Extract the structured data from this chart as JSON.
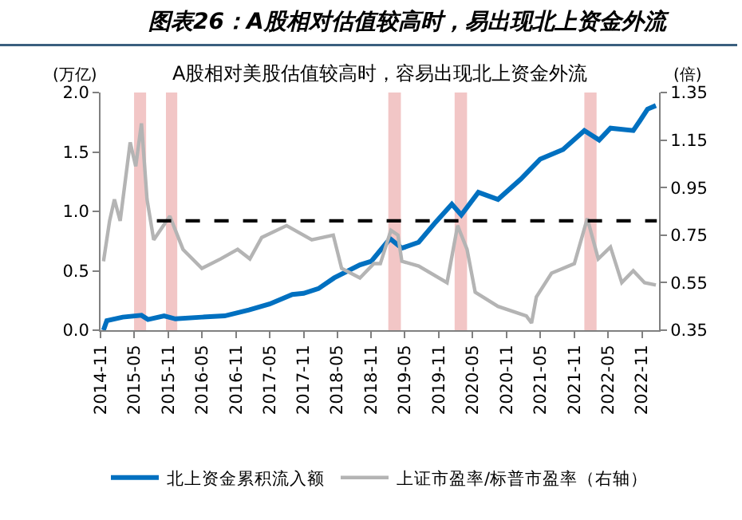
{
  "chart_data": {
    "type": "line",
    "title": "图表26：A股相对估值较高时，易出现北上资金外流",
    "subtitle": "A股相对美股估值较高时，容易出现北上资金外流",
    "ylabel": "(万亿)",
    "y2label": "(倍)",
    "xlim": [
      "2014-11",
      "2023-02"
    ],
    "xticks": [
      "2014-11",
      "2015-05",
      "2015-11",
      "2016-05",
      "2016-11",
      "2017-05",
      "2017-11",
      "2018-05",
      "2018-11",
      "2019-05",
      "2019-11",
      "2020-05",
      "2020-11",
      "2021-05",
      "2021-11",
      "2022-05",
      "2022-11"
    ],
    "ylim": [
      0,
      2.0
    ],
    "yticks": [
      {
        "value": 0,
        "label": "0.0"
      },
      0.5,
      {
        "value": 1,
        "label": "1.0"
      },
      1.5,
      {
        "value": 2,
        "label": "2.0"
      }
    ],
    "y2lim": [
      0.35,
      1.35
    ],
    "y2ticks": [
      0.35,
      0.55,
      0.75,
      0.95,
      1.15,
      1.35
    ],
    "grid": false,
    "legend": "bottom",
    "marker": "none",
    "series": [
      {
        "name": "北上资金累积流入额",
        "color": "#0070c0",
        "axis": "y",
        "x": [
          "2014-11-17",
          "2014-12-05",
          "2015-03-01",
          "2015-06-10",
          "2015-07-15",
          "2015-10-10",
          "2015-12-10",
          "2016-05-01",
          "2016-09-01",
          "2017-01-10",
          "2017-05-01",
          "2017-09-01",
          "2017-11-01",
          "2018-01-20",
          "2018-04-15",
          "2018-09-01",
          "2018-11-01",
          "2019-02-10",
          "2019-04-15",
          "2019-07-15",
          "2019-10-15",
          "2020-01-10",
          "2020-03-01",
          "2020-06-01",
          "2020-09-15",
          "2021-01-15",
          "2021-05-01",
          "2021-09-01",
          "2021-12-25",
          "2022-03-15",
          "2022-05-15",
          "2022-09-15",
          "2022-10-20",
          "2022-12-01",
          "2023-01-15"
        ],
        "values": [
          0.0,
          0.08,
          0.11,
          0.125,
          0.09,
          0.12,
          0.095,
          0.11,
          0.12,
          0.17,
          0.22,
          0.3,
          0.31,
          0.35,
          0.44,
          0.55,
          0.58,
          0.77,
          0.69,
          0.74,
          0.91,
          1.06,
          0.97,
          1.16,
          1.1,
          1.27,
          1.44,
          1.52,
          1.68,
          1.6,
          1.7,
          1.68,
          1.76,
          1.86,
          1.89
        ]
      },
      {
        "name": "上证市盈率/标普市盈率（右轴）",
        "color": "#b4b4b4",
        "axis": "y2",
        "x": [
          "2014-11-17",
          "2014-12-20",
          "2015-01-15",
          "2015-02-15",
          "2015-04-10",
          "2015-05-10",
          "2015-06-10",
          "2015-07-10",
          "2015-08-15",
          "2015-11-10",
          "2016-01-20",
          "2016-05-01",
          "2016-08-10",
          "2016-11-10",
          "2017-01-15",
          "2017-03-20",
          "2017-08-01",
          "2017-12-15",
          "2018-04-10",
          "2018-05-25",
          "2018-09-01",
          "2018-11-15",
          "2018-12-20",
          "2019-02-15",
          "2019-03-25",
          "2019-04-15",
          "2019-07-15",
          "2019-12-15",
          "2020-02-10",
          "2020-04-01",
          "2020-05-15",
          "2020-09-15",
          "2021-02-15",
          "2021-03-15",
          "2021-04-10",
          "2021-07-01",
          "2021-11-01",
          "2022-01-10",
          "2022-03-10",
          "2022-05-15",
          "2022-07-15",
          "2022-09-15",
          "2022-11-15",
          "2023-01-15"
        ],
        "values": [
          0.64,
          0.81,
          0.9,
          0.81,
          1.14,
          1.04,
          1.22,
          0.9,
          0.73,
          0.83,
          0.69,
          0.61,
          0.65,
          0.69,
          0.65,
          0.74,
          0.79,
          0.73,
          0.75,
          0.61,
          0.57,
          0.63,
          0.63,
          0.77,
          0.75,
          0.64,
          0.62,
          0.55,
          0.79,
          0.69,
          0.51,
          0.45,
          0.41,
          0.38,
          0.49,
          0.59,
          0.63,
          0.82,
          0.65,
          0.7,
          0.55,
          0.6,
          0.55,
          0.54
        ]
      },
      {
        "color": "#000000",
        "axis": "y2",
        "line_style": "dashed",
        "x": [
          "2015-09-01",
          "2023-01-20"
        ],
        "values": [
          0.81,
          0.81
        ]
      }
    ],
    "bands": [
      {
        "axis": "x",
        "from": "2015-05-01",
        "to": "2015-07-05",
        "color": "#f2c6c6"
      },
      {
        "axis": "x",
        "from": "2015-10-20",
        "to": "2015-12-20",
        "color": "#f2c6c6"
      },
      {
        "axis": "x",
        "from": "2019-02-01",
        "to": "2019-04-10",
        "color": "#f2c6c6"
      },
      {
        "axis": "x",
        "from": "2020-01-25",
        "to": "2020-04-01",
        "color": "#f2c6c6"
      },
      {
        "axis": "x",
        "from": "2021-12-25",
        "to": "2022-03-01",
        "color": "#f2c6c6"
      }
    ]
  }
}
